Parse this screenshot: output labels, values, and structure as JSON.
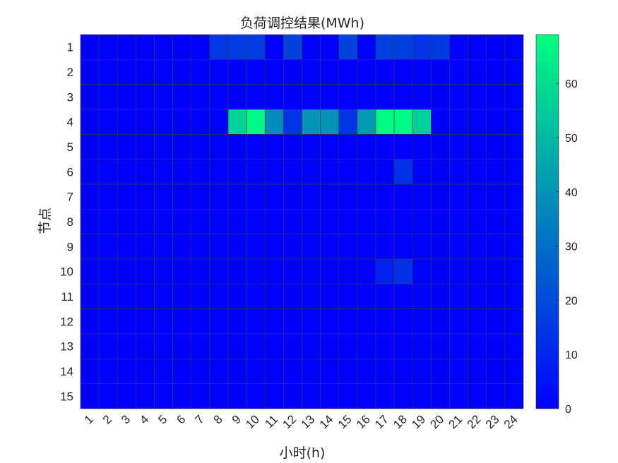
{
  "chart_data": {
    "type": "heatmap",
    "title": "负荷调控结果(MWh)",
    "xlabel": "小时(h)",
    "ylabel": "节点",
    "x_categories": [
      "1",
      "2",
      "3",
      "4",
      "5",
      "6",
      "7",
      "8",
      "9",
      "10",
      "11",
      "12",
      "13",
      "14",
      "15",
      "16",
      "17",
      "18",
      "19",
      "20",
      "21",
      "22",
      "23",
      "24"
    ],
    "y_categories": [
      "1",
      "2",
      "3",
      "4",
      "5",
      "6",
      "7",
      "8",
      "9",
      "10",
      "11",
      "12",
      "13",
      "14",
      "15"
    ],
    "colorbar": {
      "min": 0,
      "max": 69,
      "ticks": [
        "0",
        "10",
        "20",
        "30",
        "40",
        "50",
        "60"
      ],
      "colormap": "winter",
      "colors": [
        "#0000ff",
        "#00ff80"
      ]
    },
    "values": [
      [
        0,
        0,
        0,
        0,
        0,
        0,
        0,
        15,
        16,
        16,
        0,
        18,
        0,
        0,
        18,
        0,
        17,
        17,
        14,
        16,
        0,
        0,
        0,
        0
      ],
      [
        0,
        0,
        0,
        0,
        0,
        0,
        0,
        0,
        0,
        0,
        0,
        0,
        0,
        0,
        0,
        0,
        0,
        0,
        0,
        0,
        0,
        0,
        0,
        0
      ],
      [
        0,
        0,
        0,
        0,
        0,
        0,
        0,
        0,
        0,
        0,
        0,
        0,
        0,
        0,
        0,
        0,
        0,
        0,
        0,
        0,
        0,
        0,
        0,
        0
      ],
      [
        0,
        0,
        0,
        0,
        0,
        0,
        0,
        0,
        57,
        67,
        38,
        14,
        40,
        40,
        14,
        42,
        67,
        67,
        56,
        0,
        0,
        0,
        0,
        0
      ],
      [
        0,
        0,
        0,
        0,
        0,
        0,
        0,
        0,
        0,
        0,
        0,
        0,
        0,
        0,
        0,
        0,
        0,
        0,
        0,
        0,
        0,
        0,
        0,
        0
      ],
      [
        0,
        0,
        0,
        0,
        0,
        0,
        0,
        0,
        0,
        0,
        0,
        0,
        0,
        0,
        0,
        0,
        0,
        13,
        0,
        0,
        0,
        0,
        0,
        0
      ],
      [
        0,
        0,
        0,
        0,
        0,
        0,
        0,
        0,
        0,
        0,
        0,
        0,
        0,
        0,
        0,
        0,
        0,
        0,
        0,
        0,
        0,
        0,
        0,
        0
      ],
      [
        0,
        0,
        0,
        0,
        0,
        0,
        0,
        0,
        0,
        0,
        0,
        0,
        0,
        0,
        0,
        0,
        0,
        0,
        0,
        0,
        0,
        0,
        0,
        0
      ],
      [
        0,
        0,
        0,
        0,
        0,
        0,
        0,
        0,
        0,
        0,
        0,
        0,
        0,
        0,
        0,
        0,
        0,
        0,
        0,
        0,
        0,
        0,
        0,
        0
      ],
      [
        0,
        0,
        0,
        0,
        0,
        0,
        0,
        0,
        0,
        0,
        0,
        0,
        0,
        0,
        0,
        0,
        9,
        13,
        0,
        0,
        0,
        0,
        0,
        0
      ],
      [
        0,
        0,
        0,
        0,
        0,
        0,
        0,
        0,
        0,
        0,
        0,
        0,
        0,
        0,
        0,
        0,
        0,
        0,
        0,
        0,
        0,
        0,
        0,
        0
      ],
      [
        0,
        0,
        0,
        0,
        0,
        0,
        0,
        0,
        0,
        0,
        0,
        0,
        0,
        0,
        0,
        0,
        0,
        0,
        0,
        0,
        0,
        0,
        0,
        0
      ],
      [
        0,
        0,
        0,
        0,
        0,
        0,
        0,
        0,
        0,
        0,
        0,
        0,
        0,
        0,
        0,
        0,
        0,
        0,
        0,
        0,
        0,
        0,
        0,
        0
      ],
      [
        0,
        0,
        0,
        0,
        0,
        0,
        0,
        0,
        0,
        0,
        0,
        0,
        0,
        0,
        0,
        0,
        0,
        0,
        0,
        0,
        0,
        0,
        0,
        0
      ],
      [
        0,
        0,
        0,
        0,
        0,
        0,
        0,
        0,
        0,
        0,
        0,
        0,
        0,
        0,
        0,
        0,
        0,
        0,
        0,
        0,
        0,
        0,
        0,
        0
      ]
    ],
    "grid": true,
    "legend": "colorbar-right"
  }
}
